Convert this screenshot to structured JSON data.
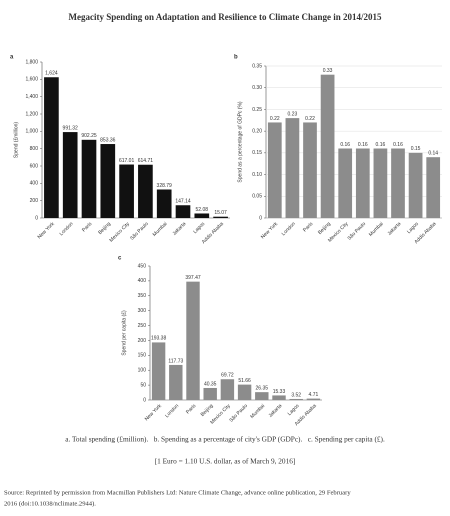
{
  "title": "Megacity Spending on Adaptation and Resilience to Climate Change in 2014/2015",
  "chart_data": [
    {
      "type": "bar",
      "panel": "a",
      "ylabel": "Spend (£million)",
      "color": "#111111",
      "grid": false,
      "categories": [
        "New York",
        "London",
        "Paris",
        "Beijing",
        "Mexico City",
        "São Paulo",
        "Mumbai",
        "Jakarta",
        "Lagos",
        "Addis Ababa"
      ],
      "values": [
        1624,
        991.32,
        902.25,
        853.36,
        617.01,
        614.71,
        328.79,
        147.14,
        52.08,
        15.07
      ],
      "value_labels": [
        "1,624",
        "991.32",
        "902.25",
        "853.36",
        "617.01",
        "614.71",
        "328.79",
        "147.14",
        "52.08",
        "15.07"
      ],
      "ylim": [
        0,
        1800
      ],
      "yticks": [
        0,
        200,
        400,
        600,
        800,
        {
          "value": 1000,
          "label": "1,000"
        },
        {
          "value": 1200,
          "label": "1,200"
        },
        {
          "value": 1400,
          "label": "1,400"
        },
        {
          "value": 1600,
          "label": "1,600"
        },
        {
          "value": 1800,
          "label": "1,800"
        }
      ]
    },
    {
      "type": "bar",
      "panel": "b",
      "ylabel": "Spend as a percentage of GDPc (%)",
      "color": "#8c8c8c",
      "grid": true,
      "categories": [
        "New York",
        "London",
        "Paris",
        "Beijing",
        "Mexico City",
        "São Paulo",
        "Mumbai",
        "Jakarta",
        "Lagos",
        "Addis Ababa"
      ],
      "values": [
        0.22,
        0.23,
        0.22,
        0.33,
        0.16,
        0.16,
        0.16,
        0.16,
        0.15,
        0.14
      ],
      "ylim": [
        0,
        0.35
      ],
      "yticks": [
        0,
        0.05,
        {
          "value": 0.1,
          "label": "0.10"
        },
        0.15,
        {
          "value": 0.2,
          "label": "0.20"
        },
        0.25,
        {
          "value": 0.3,
          "label": "0.30"
        },
        0.35
      ]
    },
    {
      "type": "bar",
      "panel": "c",
      "ylabel": "Spend per capita (£)",
      "color": "#8c8c8c",
      "grid": false,
      "categories": [
        "New York",
        "London",
        "Paris",
        "Beijing",
        "Mexico City",
        "São Paulo",
        "Mumbai",
        "Jakarta",
        "Lagos",
        "Addis Ababa"
      ],
      "values": [
        193.38,
        117.73,
        397.47,
        40.35,
        69.72,
        51.66,
        26.35,
        15.33,
        3.52,
        4.71
      ],
      "ylim": [
        0,
        450
      ],
      "yticks": [
        0,
        50,
        100,
        150,
        200,
        250,
        300,
        350,
        400,
        450
      ]
    }
  ],
  "caption": "a. Total spending (£million).   b. Spending as a percentage of city's GDP (GDPc).   c. Spending per capita (£).",
  "note": "[1 Euro = 1.10 U.S. dollar, as of March 9, 2016]",
  "source": [
    "Source: Reprinted by permission from Macmillan Publishers Ltd: Nature Climate Change, advance online publication, 29 February",
    "2016 (doi:10.1038/nclimate.2944)."
  ]
}
